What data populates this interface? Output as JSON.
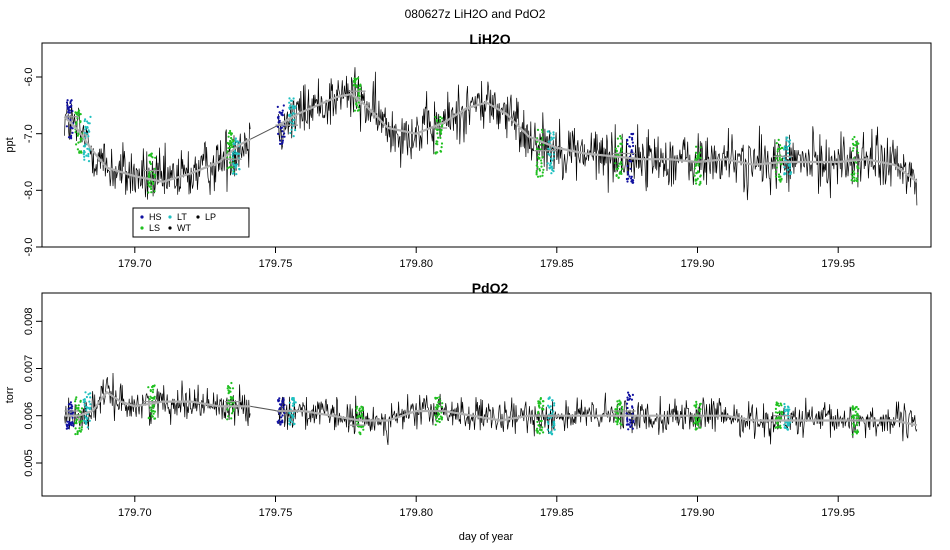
{
  "figure": {
    "title": "080627z   LiH2O and PdO2",
    "xlabel": "day of year"
  },
  "chart_data": [
    {
      "type": "line",
      "title": "LiH2O",
      "xlabel": "",
      "ylabel": "ppt",
      "xlim": [
        179.667,
        179.983
      ],
      "ylim": [
        -9.0,
        -5.4
      ],
      "xticks": [
        179.7,
        179.75,
        179.8,
        179.85,
        179.9,
        179.95
      ],
      "xtick_labels": [
        "179.70",
        "179.75",
        "179.80",
        "179.85",
        "179.90",
        "179.95"
      ],
      "yticks": [
        -9.0,
        -8.0,
        -7.0,
        -6.0
      ],
      "ytick_labels": [
        "-9.0",
        "-8.0",
        "-7.0",
        "-6.0"
      ],
      "y_label_rotation": "vertical",
      "gap": [
        179.741,
        179.751
      ],
      "series": [
        {
          "name": "raw",
          "color": "#000000",
          "noise": 0.45,
          "x": [
            179.675,
            179.68,
            179.685,
            179.69,
            179.7,
            179.71,
            179.72,
            179.73,
            179.737,
            179.741,
            179.751,
            179.758,
            179.765,
            179.772,
            179.777,
            179.782,
            179.79,
            179.8,
            179.81,
            179.818,
            179.825,
            179.832,
            179.84,
            179.85,
            179.86,
            179.87,
            179.88,
            179.89,
            179.9,
            179.91,
            179.92,
            179.93,
            179.94,
            179.95,
            179.96,
            179.97,
            179.978
          ],
          "y": [
            -6.7,
            -6.95,
            -7.3,
            -7.6,
            -7.75,
            -7.85,
            -7.7,
            -7.5,
            -7.2,
            -7.1,
            -6.85,
            -6.65,
            -6.5,
            -6.35,
            -6.3,
            -6.5,
            -6.9,
            -7.0,
            -6.8,
            -6.55,
            -6.45,
            -6.65,
            -7.05,
            -7.25,
            -7.35,
            -7.4,
            -7.45,
            -7.45,
            -7.5,
            -7.45,
            -7.55,
            -7.5,
            -7.5,
            -7.5,
            -7.45,
            -7.55,
            -7.85
          ]
        },
        {
          "name": "smoothed",
          "color": "#b0b0b0",
          "x": [
            179.675,
            179.68,
            179.685,
            179.69,
            179.7,
            179.71,
            179.72,
            179.73,
            179.737,
            179.741,
            179.751,
            179.758,
            179.765,
            179.772,
            179.777,
            179.782,
            179.79,
            179.8,
            179.81,
            179.818,
            179.825,
            179.832,
            179.84,
            179.85,
            179.86,
            179.87,
            179.88,
            179.89,
            179.9,
            179.91,
            179.92,
            179.93,
            179.94,
            179.95,
            179.96,
            179.97,
            179.978
          ],
          "y": [
            -6.7,
            -6.95,
            -7.3,
            -7.6,
            -7.75,
            -7.85,
            -7.7,
            -7.5,
            -7.2,
            -7.1,
            -6.85,
            -6.65,
            -6.5,
            -6.35,
            -6.3,
            -6.5,
            -6.9,
            -7.0,
            -6.8,
            -6.55,
            -6.45,
            -6.65,
            -7.05,
            -7.25,
            -7.35,
            -7.4,
            -7.45,
            -7.45,
            -7.5,
            -7.45,
            -7.55,
            -7.5,
            -7.5,
            -7.5,
            -7.45,
            -7.55,
            -7.85
          ]
        }
      ],
      "calibration_bursts": [
        {
          "x": 179.677,
          "color": "#1010a0",
          "center": -6.75,
          "spread": 0.35
        },
        {
          "x": 179.68,
          "color": "#20c020",
          "center": -6.9,
          "spread": 0.45
        },
        {
          "x": 179.683,
          "color": "#20c0c0",
          "center": -7.1,
          "spread": 0.4
        },
        {
          "x": 179.706,
          "color": "#20c020",
          "center": -7.7,
          "spread": 0.35
        },
        {
          "x": 179.734,
          "color": "#20c020",
          "center": -7.3,
          "spread": 0.4
        },
        {
          "x": 179.736,
          "color": "#20c0c0",
          "center": -7.4,
          "spread": 0.35
        },
        {
          "x": 179.752,
          "color": "#1010a0",
          "center": -6.85,
          "spread": 0.35
        },
        {
          "x": 179.756,
          "color": "#20c0c0",
          "center": -6.7,
          "spread": 0.35
        },
        {
          "x": 179.779,
          "color": "#20c020",
          "center": -6.3,
          "spread": 0.3
        },
        {
          "x": 179.808,
          "color": "#20c020",
          "center": -7.0,
          "spread": 0.35
        },
        {
          "x": 179.844,
          "color": "#20c020",
          "center": -7.35,
          "spread": 0.45
        },
        {
          "x": 179.848,
          "color": "#20c0c0",
          "center": -7.3,
          "spread": 0.4
        },
        {
          "x": 179.872,
          "color": "#20c020",
          "center": -7.4,
          "spread": 0.4
        },
        {
          "x": 179.876,
          "color": "#1010a0",
          "center": -7.45,
          "spread": 0.45
        },
        {
          "x": 179.9,
          "color": "#20c020",
          "center": -7.55,
          "spread": 0.35
        },
        {
          "x": 179.929,
          "color": "#20c020",
          "center": -7.5,
          "spread": 0.4
        },
        {
          "x": 179.932,
          "color": "#20c0c0",
          "center": -7.4,
          "spread": 0.35
        },
        {
          "x": 179.956,
          "color": "#20c020",
          "center": -7.45,
          "spread": 0.4
        }
      ],
      "calibration_levels": [
        {
          "x0": 179.675,
          "x1": 179.68,
          "y": -6.7
        },
        {
          "x0": 179.703,
          "x1": 179.709,
          "y": -7.65
        },
        {
          "x0": 179.732,
          "x1": 179.738,
          "y": -7.45
        },
        {
          "x0": 179.75,
          "x1": 179.758,
          "y": -6.85
        },
        {
          "x0": 179.776,
          "x1": 179.782,
          "y": -6.25
        },
        {
          "x0": 179.805,
          "x1": 179.811,
          "y": -6.9
        },
        {
          "x0": 179.842,
          "x1": 179.85,
          "y": -7.3
        },
        {
          "x0": 179.87,
          "x1": 179.878,
          "y": -7.35
        },
        {
          "x0": 179.897,
          "x1": 179.903,
          "y": -7.5
        },
        {
          "x0": 179.927,
          "x1": 179.934,
          "y": -7.4
        },
        {
          "x0": 179.953,
          "x1": 179.959,
          "y": -7.45
        }
      ],
      "legend": {
        "placement": "bottom-left",
        "entries": [
          {
            "label": "HS",
            "color": "#1010a0"
          },
          {
            "label": "LT",
            "color": "#20c0c0"
          },
          {
            "label": "LP",
            "color": "#000000"
          },
          {
            "label": "LS",
            "color": "#20c020"
          },
          {
            "label": "WT",
            "color": "#000000"
          }
        ]
      }
    },
    {
      "type": "line",
      "title": "PdO2",
      "xlabel": "day of year",
      "ylabel": "torr",
      "xlim": [
        179.667,
        179.983
      ],
      "ylim": [
        0.0043,
        0.0086
      ],
      "xticks": [
        179.7,
        179.75,
        179.8,
        179.85,
        179.9,
        179.95
      ],
      "xtick_labels": [
        "179.70",
        "179.75",
        "179.80",
        "179.85",
        "179.90",
        "179.95"
      ],
      "yticks": [
        0.005,
        0.006,
        0.007,
        0.008
      ],
      "ytick_labels": [
        "0.005",
        "0.006",
        "0.007",
        "0.008"
      ],
      "y_label_rotation": "vertical",
      "gap": [
        179.741,
        179.751
      ],
      "series": [
        {
          "name": "raw",
          "color": "#000000",
          "noise": 0.00032,
          "x": [
            179.675,
            179.68,
            179.685,
            179.69,
            179.695,
            179.7,
            179.71,
            179.72,
            179.73,
            179.741,
            179.751,
            179.76,
            179.77,
            179.78,
            179.79,
            179.8,
            179.81,
            179.82,
            179.83,
            179.84,
            179.85,
            179.86,
            179.87,
            179.88,
            179.89,
            179.9,
            179.91,
            179.92,
            179.93,
            179.94,
            179.95,
            179.96,
            179.97,
            179.978
          ],
          "y": [
            0.006,
            0.006,
            0.0061,
            0.0065,
            0.0063,
            0.0062,
            0.0063,
            0.0063,
            0.0062,
            0.0062,
            0.0061,
            0.0061,
            0.006,
            0.0059,
            0.0059,
            0.0061,
            0.0061,
            0.006,
            0.0059,
            0.006,
            0.006,
            0.006,
            0.006,
            0.006,
            0.006,
            0.006,
            0.006,
            0.0059,
            0.0059,
            0.0059,
            0.0059,
            0.0059,
            0.0059,
            0.0058
          ]
        },
        {
          "name": "smoothed",
          "color": "#b0b0b0",
          "x": [
            179.675,
            179.68,
            179.685,
            179.69,
            179.695,
            179.7,
            179.71,
            179.72,
            179.73,
            179.741,
            179.751,
            179.76,
            179.77,
            179.78,
            179.79,
            179.8,
            179.81,
            179.82,
            179.83,
            179.84,
            179.85,
            179.86,
            179.87,
            179.88,
            179.89,
            179.9,
            179.91,
            179.92,
            179.93,
            179.94,
            179.95,
            179.96,
            179.97,
            179.978
          ],
          "y": [
            0.006,
            0.006,
            0.0061,
            0.0065,
            0.0063,
            0.0062,
            0.0063,
            0.0063,
            0.0062,
            0.0062,
            0.0061,
            0.0061,
            0.006,
            0.0059,
            0.0059,
            0.0061,
            0.0061,
            0.006,
            0.0059,
            0.006,
            0.006,
            0.006,
            0.006,
            0.006,
            0.006,
            0.006,
            0.006,
            0.0059,
            0.0059,
            0.0059,
            0.0059,
            0.0059,
            0.0059,
            0.0058
          ]
        }
      ],
      "calibration_bursts": [
        {
          "x": 179.677,
          "color": "#1010a0",
          "center": 0.006,
          "spread": 0.0003
        },
        {
          "x": 179.68,
          "color": "#20c020",
          "center": 0.006,
          "spread": 0.0004
        },
        {
          "x": 179.683,
          "color": "#20c0c0",
          "center": 0.0061,
          "spread": 0.0004
        },
        {
          "x": 179.706,
          "color": "#20c020",
          "center": 0.0063,
          "spread": 0.0004
        },
        {
          "x": 179.734,
          "color": "#20c020",
          "center": 0.0063,
          "spread": 0.0004
        },
        {
          "x": 179.752,
          "color": "#1010a0",
          "center": 0.0061,
          "spread": 0.0003
        },
        {
          "x": 179.756,
          "color": "#20c0c0",
          "center": 0.0061,
          "spread": 0.0003
        },
        {
          "x": 179.78,
          "color": "#20c020",
          "center": 0.0059,
          "spread": 0.0003
        },
        {
          "x": 179.808,
          "color": "#20c020",
          "center": 0.0061,
          "spread": 0.0003
        },
        {
          "x": 179.844,
          "color": "#20c020",
          "center": 0.006,
          "spread": 0.0004
        },
        {
          "x": 179.848,
          "color": "#20c0c0",
          "center": 0.006,
          "spread": 0.0004
        },
        {
          "x": 179.872,
          "color": "#20c020",
          "center": 0.0061,
          "spread": 0.0003
        },
        {
          "x": 179.876,
          "color": "#1010a0",
          "center": 0.0061,
          "spread": 0.0004
        },
        {
          "x": 179.9,
          "color": "#20c020",
          "center": 0.006,
          "spread": 0.0003
        },
        {
          "x": 179.929,
          "color": "#20c020",
          "center": 0.006,
          "spread": 0.0003
        },
        {
          "x": 179.932,
          "color": "#20c0c0",
          "center": 0.006,
          "spread": 0.0003
        },
        {
          "x": 179.956,
          "color": "#20c020",
          "center": 0.0059,
          "spread": 0.0003
        }
      ],
      "calibration_levels": [
        {
          "x0": 179.675,
          "x1": 179.68,
          "y": 0.0061
        },
        {
          "x0": 179.703,
          "x1": 179.709,
          "y": 0.0063
        },
        {
          "x0": 179.732,
          "x1": 179.738,
          "y": 0.0063
        },
        {
          "x0": 179.75,
          "x1": 179.758,
          "y": 0.0061
        },
        {
          "x0": 179.776,
          "x1": 179.782,
          "y": 0.0058
        },
        {
          "x0": 179.805,
          "x1": 179.811,
          "y": 0.0061
        },
        {
          "x0": 179.842,
          "x1": 179.85,
          "y": 0.006
        },
        {
          "x0": 179.87,
          "x1": 179.878,
          "y": 0.0061
        },
        {
          "x0": 179.897,
          "x1": 179.903,
          "y": 0.006
        },
        {
          "x0": 179.927,
          "x1": 179.934,
          "y": 0.006
        },
        {
          "x0": 179.953,
          "x1": 179.959,
          "y": 0.0059
        }
      ]
    }
  ]
}
